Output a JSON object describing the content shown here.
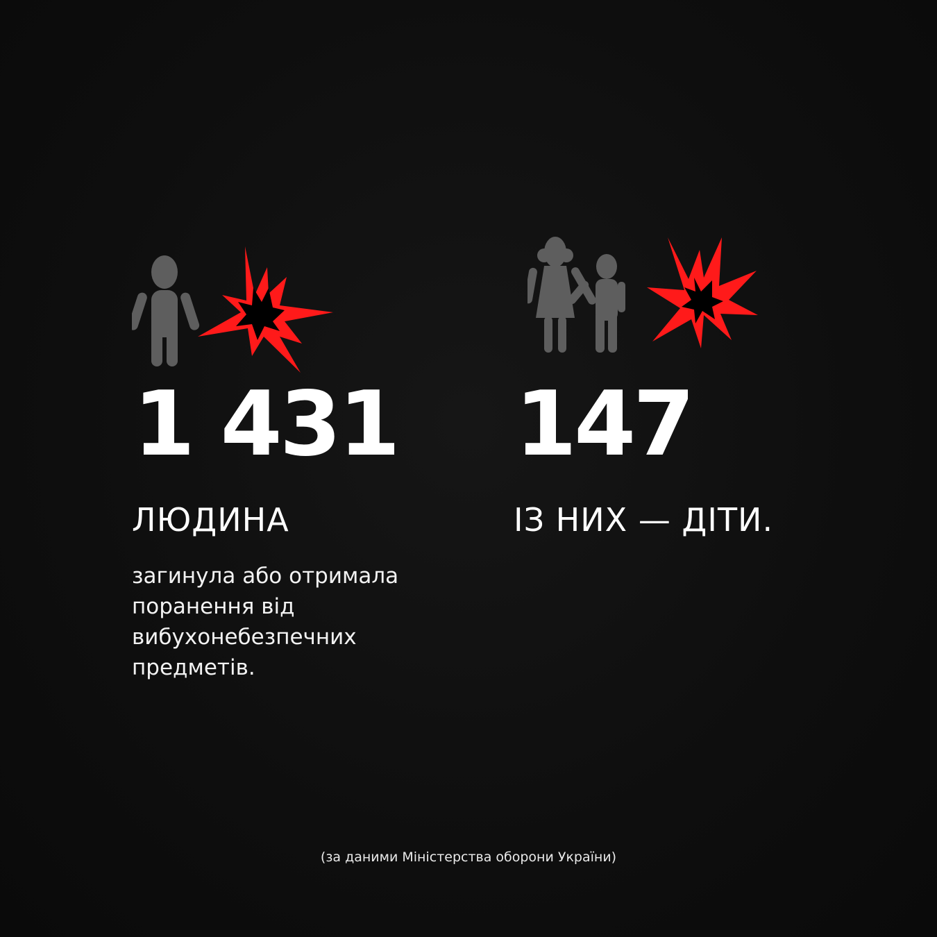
{
  "colors": {
    "background": "#0e0e0e",
    "figure": "#5e5e5e",
    "explosion": "#ff1a1a",
    "text": "#ffffff"
  },
  "left": {
    "icons": [
      "person-icon",
      "explosion-icon"
    ],
    "number": "1 431",
    "label": "ЛЮДИНА",
    "description": [
      "загинула або отримала",
      "поранення від",
      "вибухонебезпечних",
      "предметів."
    ]
  },
  "right": {
    "icons": [
      "woman-and-child-icon",
      "explosion-icon"
    ],
    "number": "147",
    "label": "ІЗ НИХ — ДІТИ."
  },
  "source": "(за даними Міністерства оборони України)"
}
